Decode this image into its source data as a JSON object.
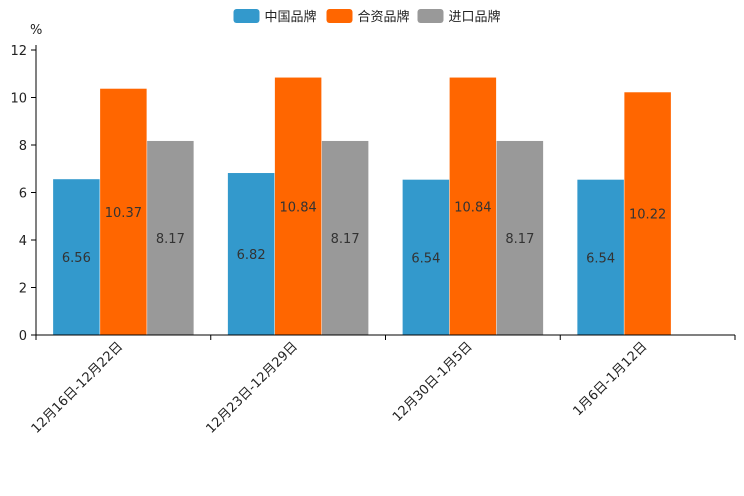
{
  "chart_data": {
    "type": "bar",
    "unit_label": "%",
    "categories": [
      "12月16日-12月22日",
      "12月23日-12月29日",
      "12月30日-1月5日",
      "1月6日-1月12日"
    ],
    "series": [
      {
        "name": "中国品牌",
        "color": "#3399cc",
        "values": [
          6.56,
          6.82,
          6.54,
          6.54
        ]
      },
      {
        "name": "合资品牌",
        "color": "#ff6600",
        "values": [
          10.37,
          10.84,
          10.84,
          10.22
        ]
      },
      {
        "name": "进口品牌",
        "color": "#999999",
        "values": [
          8.17,
          8.17,
          8.17,
          null
        ]
      }
    ],
    "ylim": [
      0,
      12
    ],
    "yticks": [
      0,
      2,
      4,
      6,
      8,
      10,
      12
    ],
    "legend_position": "top-center",
    "grid": false
  }
}
